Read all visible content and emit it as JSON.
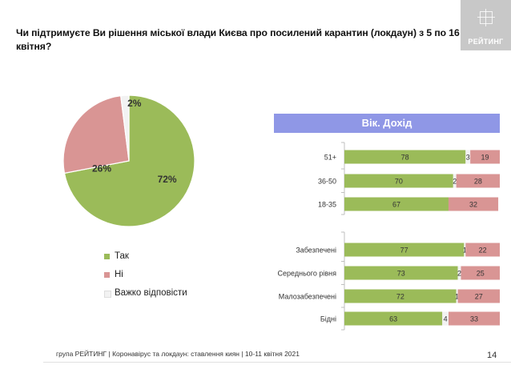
{
  "title": "Чи підтримуєте Ви рішення міської влади Києва про посилений карантин (локдаун) з 5 по 16 квітня?",
  "logo": {
    "text": "РЕЙТИНГ"
  },
  "footer": "група РЕЙТИНГ  | Коронавірус та локдаун: ставлення киян  | 10-11 квітня 2021",
  "page_number": "14",
  "colors": {
    "yes": "#9bbb59",
    "no": "#d99594",
    "hard": "#f2f2f2",
    "header": "#8f97e6"
  },
  "chart_data": [
    {
      "type": "pie",
      "categories": [
        "Так",
        "Ні",
        "Важко відповісти"
      ],
      "values": [
        72,
        26,
        2
      ],
      "labels": [
        "72%",
        "26%",
        "2%"
      ],
      "legend_position": "bottom"
    },
    {
      "type": "bar",
      "stacked": true,
      "orientation": "horizontal",
      "title": "Вік. Дохід",
      "categories": [
        "51+",
        "36-50",
        "18-35",
        "Забезпечені",
        "Середнього рівня",
        "Малозабезпечені",
        "Бідні"
      ],
      "series": [
        {
          "key": "yes",
          "values": [
            78,
            70,
            67,
            77,
            73,
            72,
            63
          ]
        },
        {
          "key": "hard",
          "values": [
            3,
            2,
            null,
            1,
            2,
            1,
            4
          ]
        },
        {
          "key": "no",
          "values": [
            19,
            28,
            32,
            22,
            25,
            27,
            33
          ]
        }
      ],
      "xlim": [
        0,
        100
      ]
    }
  ]
}
